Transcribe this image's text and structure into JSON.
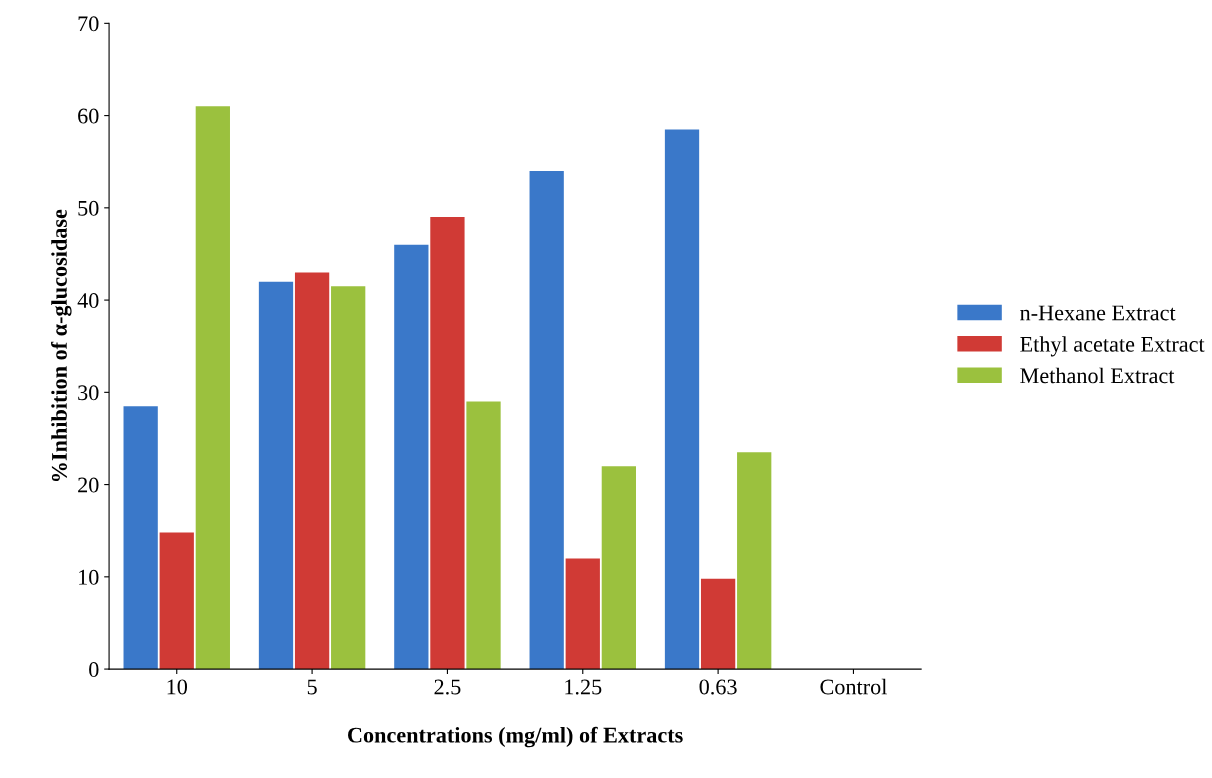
{
  "chart_data": {
    "type": "bar",
    "xlabel": "Concentrations (mg/ml) of Extracts",
    "ylabel": "%Inhibition of α-glucosidase",
    "categories": [
      "10",
      "5",
      "2.5",
      "1.25",
      "0.63",
      "Control"
    ],
    "series": [
      {
        "name": "n-Hexane Extract",
        "color": "#3a78c9",
        "values": [
          28.5,
          42,
          46,
          54,
          58.5,
          0
        ]
      },
      {
        "name": "Ethyl acetate Extract",
        "color": "#d03a35",
        "values": [
          14.8,
          43,
          49,
          12,
          9.8,
          0
        ]
      },
      {
        "name": "Methanol Extract",
        "color": "#9bc13e",
        "values": [
          61,
          41.5,
          29,
          22,
          23.5,
          0
        ]
      }
    ],
    "ylim": [
      0,
      70
    ],
    "yticks": [
      0,
      10,
      20,
      30,
      40,
      50,
      60,
      70
    ],
    "grid": false,
    "legend": "right"
  }
}
